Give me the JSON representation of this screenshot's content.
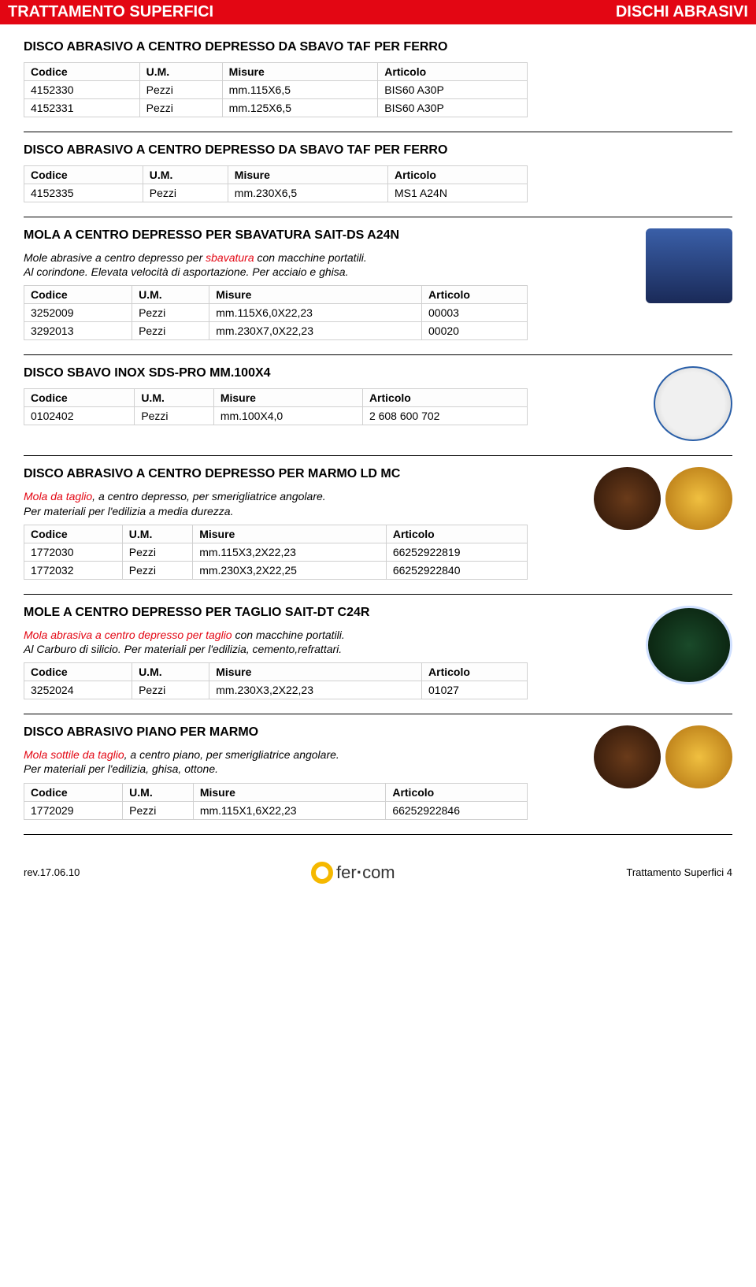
{
  "header": {
    "left": "TRATTAMENTO SUPERFICI",
    "right": "DISCHI ABRASIVI"
  },
  "table_headers": {
    "codice": "Codice",
    "um": "U.M.",
    "misure": "Misure",
    "articolo": "Articolo"
  },
  "sections": [
    {
      "title": "DISCO ABRASIVO A CENTRO DEPRESSO DA SBAVO TAF PER FERRO",
      "rows": [
        {
          "codice": "4152330",
          "um": "Pezzi",
          "misure": "mm.115X6,5",
          "articolo": "BIS60 A30P"
        },
        {
          "codice": "4152331",
          "um": "Pezzi",
          "misure": "mm.125X6,5",
          "articolo": "BIS60 A30P"
        }
      ]
    },
    {
      "title": "DISCO ABRASIVO A CENTRO DEPRESSO DA SBAVO TAF PER FERRO",
      "rows": [
        {
          "codice": "4152335",
          "um": "Pezzi",
          "misure": "mm.230X6,5",
          "articolo": "MS1 A24N"
        }
      ]
    },
    {
      "title": "MOLA A CENTRO DEPRESSO PER SBAVATURA SAIT-DS A24N",
      "desc_red": "sbavatura",
      "desc_pre": "Mole abrasive a centro depresso per ",
      "desc_post": " con macchine portatili.",
      "desc_line2": "Al corindone. Elevata velocità di asportazione. Per acciaio e ghisa.",
      "image": "sait",
      "rows": [
        {
          "codice": "3252009",
          "um": "Pezzi",
          "misure": "mm.115X6,0X22,23",
          "articolo": "00003"
        },
        {
          "codice": "3292013",
          "um": "Pezzi",
          "misure": "mm.230X7,0X22,23",
          "articolo": "00020"
        }
      ]
    },
    {
      "title": "DISCO SBAVO INOX SDS-PRO MM.100X4",
      "image": "bosch",
      "rows": [
        {
          "codice": "0102402",
          "um": "Pezzi",
          "misure": "mm.100X4,0",
          "articolo": "2 608 600 702"
        }
      ]
    },
    {
      "title": "DISCO ABRASIVO A CENTRO DEPRESSO PER MARMO LD MC",
      "desc_red": "Mola da taglio",
      "desc_pre": "",
      "desc_post": ", a centro depresso, per smerigliatrice angolare.",
      "desc_line2": "Per materiali per l'edilizia a media durezza.",
      "image": "pair",
      "rows": [
        {
          "codice": "1772030",
          "um": "Pezzi",
          "misure": "mm.115X3,2X22,23",
          "articolo": "66252922819"
        },
        {
          "codice": "1772032",
          "um": "Pezzi",
          "misure": "mm.230X3,2X22,25",
          "articolo": "66252922840"
        }
      ]
    },
    {
      "title": "MOLE A CENTRO DEPRESSO PER TAGLIO SAIT-DT C24R",
      "desc_red": "Mola abrasiva a centro depresso per taglio",
      "desc_pre": "",
      "desc_post": " con macchine portatili.",
      "desc_line2": "Al Carburo di silicio. Per materiali per l'edilizia, cemento,refrattari.",
      "image": "sait2",
      "rows": [
        {
          "codice": "3252024",
          "um": "Pezzi",
          "misure": "mm.230X3,2X22,23",
          "articolo": "01027"
        }
      ]
    },
    {
      "title": "DISCO ABRASIVO PIANO PER MARMO",
      "desc_red": "Mola sottile da taglio",
      "desc_pre": "",
      "desc_post": ", a centro piano, per smerigliatrice angolare.",
      "desc_line2": "Per materiali per l'edilizia, ghisa, ottone.",
      "image": "pair",
      "rows": [
        {
          "codice": "1772029",
          "um": "Pezzi",
          "misure": "mm.115X1,6X22,23",
          "articolo": "66252922846"
        }
      ]
    }
  ],
  "footer": {
    "left": "rev.17.06.10",
    "logo_pre": "fer",
    "logo_post": "com",
    "right": "Trattamento Superfici 4"
  }
}
